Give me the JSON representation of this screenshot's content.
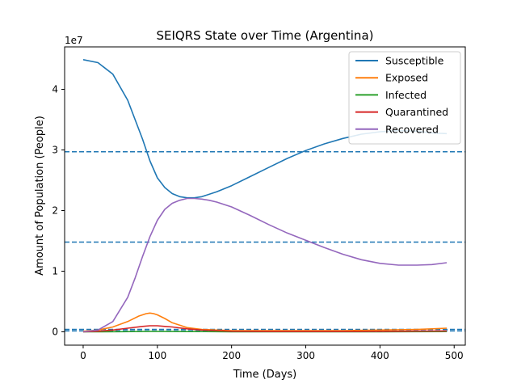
{
  "chart_data": {
    "type": "line",
    "title": "SEIQRS State over Time (Argentina)",
    "xlabel": "Time (Days)",
    "ylabel": "Amount of Population (People)",
    "y_offset_label": "1e7",
    "xlim": [
      -25,
      515
    ],
    "ylim": [
      -0.22,
      4.7
    ],
    "y_units": "1e7 people",
    "xticks": [
      0,
      100,
      200,
      300,
      400,
      500
    ],
    "xtick_labels": [
      "0",
      "100",
      "200",
      "300",
      "400",
      "500"
    ],
    "yticks": [
      0,
      1,
      2,
      3,
      4
    ],
    "ytick_labels": [
      "0",
      "1",
      "2",
      "3",
      "4"
    ],
    "grid": false,
    "legend_position": "top-right",
    "hlines": [
      {
        "y": 2.97,
        "color": "#1f77b4",
        "style": "dashed"
      },
      {
        "y": 1.48,
        "color": "#1f77b4",
        "style": "dashed"
      },
      {
        "y": 0.04,
        "color": "#1f77b4",
        "style": "dashed"
      },
      {
        "y": 0.015,
        "color": "#1f77b4",
        "style": "dashed"
      }
    ],
    "series": [
      {
        "name": "Susceptible",
        "color": "#1f77b4",
        "x": [
          0,
          20,
          40,
          60,
          80,
          90,
          100,
          110,
          120,
          130,
          140,
          150,
          160,
          180,
          200,
          225,
          250,
          275,
          300,
          325,
          350,
          375,
          400,
          425,
          450,
          470,
          490
        ],
        "y": [
          4.49,
          4.44,
          4.25,
          3.82,
          3.18,
          2.82,
          2.54,
          2.38,
          2.28,
          2.23,
          2.21,
          2.21,
          2.23,
          2.31,
          2.41,
          2.56,
          2.71,
          2.86,
          2.99,
          3.1,
          3.19,
          3.26,
          3.3,
          3.32,
          3.31,
          3.28,
          3.27
        ]
      },
      {
        "name": "Exposed",
        "color": "#ff7f0e",
        "x": [
          0,
          20,
          40,
          60,
          75,
          85,
          90,
          95,
          100,
          110,
          120,
          140,
          160,
          180,
          200,
          250,
          300,
          350,
          400,
          450,
          470,
          490
        ],
        "y": [
          0.01,
          0.03,
          0.08,
          0.17,
          0.26,
          0.3,
          0.31,
          0.3,
          0.28,
          0.22,
          0.15,
          0.07,
          0.04,
          0.03,
          0.02,
          0.02,
          0.02,
          0.02,
          0.03,
          0.04,
          0.05,
          0.06
        ]
      },
      {
        "name": "Infected",
        "color": "#2ca02c",
        "x": [
          0,
          50,
          90,
          100,
          150,
          200,
          300,
          400,
          490
        ],
        "y": [
          0.0,
          0.003,
          0.008,
          0.008,
          0.004,
          0.002,
          0.001,
          0.002,
          0.004
        ]
      },
      {
        "name": "Quarantined",
        "color": "#d62728",
        "x": [
          0,
          20,
          40,
          60,
          80,
          90,
          100,
          110,
          120,
          140,
          160,
          180,
          200,
          250,
          300,
          350,
          400,
          450,
          490
        ],
        "y": [
          0.0,
          0.01,
          0.03,
          0.06,
          0.09,
          0.1,
          0.1,
          0.09,
          0.08,
          0.05,
          0.03,
          0.02,
          0.01,
          0.005,
          0.005,
          0.005,
          0.008,
          0.012,
          0.015
        ]
      },
      {
        "name": "Recovered",
        "color": "#9467bd",
        "x": [
          0,
          20,
          40,
          60,
          70,
          80,
          90,
          100,
          110,
          120,
          130,
          140,
          150,
          160,
          170,
          180,
          200,
          225,
          250,
          275,
          300,
          325,
          350,
          375,
          400,
          425,
          450,
          470,
          490
        ],
        "y": [
          0.0,
          0.03,
          0.17,
          0.57,
          0.89,
          1.24,
          1.57,
          1.84,
          2.02,
          2.12,
          2.17,
          2.2,
          2.2,
          2.19,
          2.17,
          2.14,
          2.06,
          1.92,
          1.77,
          1.63,
          1.51,
          1.39,
          1.28,
          1.19,
          1.13,
          1.1,
          1.1,
          1.11,
          1.14
        ]
      }
    ]
  }
}
